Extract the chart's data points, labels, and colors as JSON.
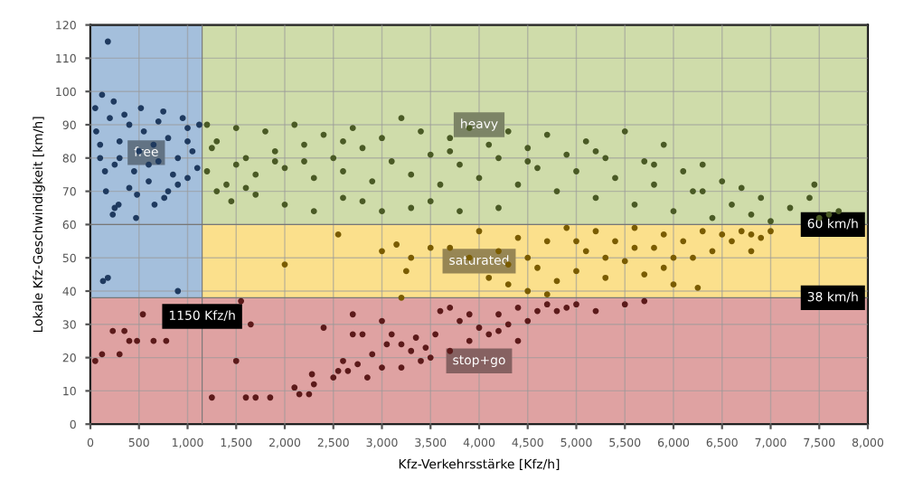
{
  "chart_data": {
    "type": "scatter",
    "xlabel": "Kfz-Verkehrsstärke [Kfz/h]",
    "ylabel": "Lokale Kfz-Geschwindigkeit [km/h]",
    "xlim": [
      0,
      8000
    ],
    "ylim": [
      0,
      120
    ],
    "xticks": [
      0,
      {
        "value": 500,
        "label": "500"
      },
      {
        "value": 1000,
        "label": "1,000"
      },
      {
        "value": 1500,
        "label": "1,500"
      },
      {
        "value": 2000,
        "label": "2,000"
      },
      {
        "value": 2500,
        "label": "2,500"
      },
      {
        "value": 3000,
        "label": "3,000"
      },
      {
        "value": 3500,
        "label": "3,500"
      },
      {
        "value": 4000,
        "label": "4,000"
      },
      {
        "value": 4500,
        "label": "4,500"
      },
      {
        "value": 5000,
        "label": "5,000"
      },
      {
        "value": 5500,
        "label": "5,500"
      },
      {
        "value": 6000,
        "label": "6,000"
      },
      {
        "value": 6500,
        "label": "6,500"
      },
      {
        "value": 7000,
        "label": "7,000"
      },
      {
        "value": 7500,
        "label": "7,500"
      },
      {
        "value": 8000,
        "label": "8,000"
      }
    ],
    "yticks": [
      0,
      10,
      20,
      30,
      40,
      50,
      60,
      70,
      80,
      90,
      100,
      110,
      120
    ],
    "grid": true,
    "marker": "circle",
    "bands": [
      {
        "axis": "y",
        "from": 60,
        "to": 120,
        "label": "heavy",
        "color": "#cfdcaa"
      },
      {
        "axis": "y",
        "from": 38,
        "to": 60,
        "label": "saturated",
        "color": "#fbe08c"
      },
      {
        "axis": "x",
        "from": 0,
        "to": 1150,
        "label": "free",
        "color": "#a4bfdc"
      },
      {
        "axis": "y",
        "from": 0,
        "to": 38,
        "label": "stop+go",
        "color": "#dfa2a2"
      }
    ],
    "ref_lines": [
      {
        "axis": "y",
        "value": 60,
        "label": "60 km/h"
      },
      {
        "axis": "y",
        "value": 38,
        "label": "38 km/h"
      },
      {
        "axis": "x",
        "value": 1150,
        "label": "1150 Kfz/h"
      }
    ],
    "series": [
      {
        "color": "#1f3a5f",
        "x": [
          50,
          120,
          180,
          240,
          60,
          100,
          150,
          200,
          300,
          400,
          500,
          600,
          700,
          800,
          900,
          1000,
          1100,
          250,
          350,
          450,
          550,
          650,
          750,
          850,
          950,
          1050,
          1120,
          160,
          230,
          250,
          290,
          470,
          480,
          520,
          660,
          760,
          800,
          900,
          1000,
          130,
          180,
          900,
          400,
          600,
          100,
          300,
          700,
          1000
        ],
        "values": [
          95,
          99,
          115,
          97,
          88,
          80,
          76,
          92,
          85,
          90,
          82,
          78,
          91,
          86,
          80,
          89,
          77,
          78,
          93,
          76,
          88,
          84,
          94,
          75,
          92,
          82,
          90,
          70,
          63,
          65,
          66,
          62,
          69,
          95,
          66,
          68,
          70,
          72,
          74,
          43,
          44,
          40,
          71,
          73,
          84,
          80,
          79,
          85
        ]
      },
      {
        "color": "#4a5a25",
        "x": [
          1200,
          1200,
          1300,
          1400,
          1500,
          1600,
          1700,
          1800,
          1900,
          2000,
          2100,
          2200,
          2300,
          2400,
          2500,
          2600,
          2700,
          2800,
          2900,
          3000,
          3100,
          3200,
          3300,
          3400,
          3500,
          3600,
          3700,
          3800,
          3900,
          4000,
          4100,
          4200,
          4300,
          4400,
          4500,
          4600,
          4700,
          4800,
          4900,
          5000,
          5100,
          5200,
          5300,
          5400,
          5500,
          5600,
          5700,
          5800,
          5900,
          6000,
          6100,
          6200,
          6300,
          6400,
          6500,
          6600,
          6700,
          6800,
          6900,
          7000,
          7200,
          7400,
          7450,
          7500,
          7600,
          7700,
          1300,
          1450,
          1700,
          2000,
          2300,
          2600,
          3000,
          3300,
          3800,
          1600,
          2800,
          3500,
          4200,
          1250,
          1900,
          2600,
          3700,
          4500,
          5200,
          5800,
          6300,
          1500,
          2200
        ],
        "values": [
          90,
          76,
          85,
          72,
          89,
          80,
          75,
          88,
          82,
          77,
          90,
          84,
          74,
          87,
          80,
          76,
          89,
          83,
          73,
          86,
          79,
          92,
          75,
          88,
          81,
          72,
          86,
          78,
          89,
          74,
          84,
          80,
          88,
          72,
          83,
          77,
          87,
          70,
          81,
          76,
          85,
          68,
          80,
          74,
          88,
          66,
          79,
          72,
          84,
          64,
          76,
          70,
          78,
          62,
          73,
          66,
          71,
          63,
          68,
          61,
          65,
          68,
          72,
          62,
          63,
          64,
          70,
          67,
          69,
          66,
          64,
          68,
          64,
          65,
          64,
          71,
          67,
          67,
          65,
          83,
          79,
          85,
          82,
          79,
          82,
          78,
          70,
          78,
          79
        ]
      },
      {
        "color": "#7a5c00",
        "x": [
          2000,
          2550,
          3000,
          3150,
          3250,
          3300,
          3500,
          3700,
          3200,
          3900,
          4000,
          4100,
          4200,
          4300,
          4400,
          4500,
          4600,
          4700,
          4800,
          4900,
          5000,
          5100,
          5200,
          5300,
          5400,
          5500,
          5600,
          5700,
          5800,
          5900,
          6000,
          6100,
          6200,
          6300,
          6400,
          6500,
          6600,
          6700,
          6800,
          6900,
          7000,
          6250,
          5900,
          4300,
          4500,
          5000,
          5300,
          5600,
          6000,
          4700,
          6800
        ],
        "values": [
          48,
          57,
          52,
          54,
          46,
          50,
          53,
          53,
          38,
          50,
          58,
          44,
          52,
          48,
          56,
          40,
          47,
          55,
          43,
          59,
          46,
          52,
          58,
          44,
          55,
          49,
          59,
          45,
          53,
          57,
          42,
          55,
          50,
          58,
          52,
          57,
          55,
          58,
          57,
          56,
          58,
          41,
          47,
          42,
          50,
          55,
          50,
          53,
          50,
          39,
          52
        ]
      },
      {
        "color": "#5c1a1a",
        "x": [
          50,
          120,
          230,
          300,
          350,
          400,
          480,
          540,
          650,
          780,
          1250,
          1500,
          1550,
          1600,
          1650,
          1700,
          1850,
          2100,
          2150,
          2250,
          2280,
          2300,
          2400,
          2500,
          2550,
          2600,
          2650,
          2700,
          2700,
          2750,
          2800,
          2850,
          2900,
          3000,
          3000,
          3050,
          3100,
          3200,
          3200,
          3300,
          3350,
          3400,
          3450,
          3500,
          3550,
          3600,
          3700,
          3800,
          3900,
          4000,
          4100,
          4200,
          4300,
          4400,
          4500,
          4600,
          4700,
          4800,
          4900,
          5000,
          5200,
          5500,
          5700,
          3900,
          4200,
          4400,
          3700
        ],
        "values": [
          19,
          21,
          28,
          21,
          28,
          25,
          25,
          33,
          25,
          25,
          8,
          19,
          37,
          8,
          30,
          8,
          8,
          11,
          9,
          9,
          15,
          12,
          29,
          14,
          16,
          19,
          16,
          27,
          33,
          18,
          27,
          14,
          21,
          17,
          31,
          24,
          27,
          17,
          24,
          22,
          26,
          19,
          23,
          20,
          27,
          34,
          22,
          31,
          25,
          29,
          27,
          33,
          30,
          35,
          31,
          34,
          36,
          34,
          35,
          36,
          34,
          36,
          37,
          33,
          28,
          25,
          35
        ]
      }
    ]
  }
}
